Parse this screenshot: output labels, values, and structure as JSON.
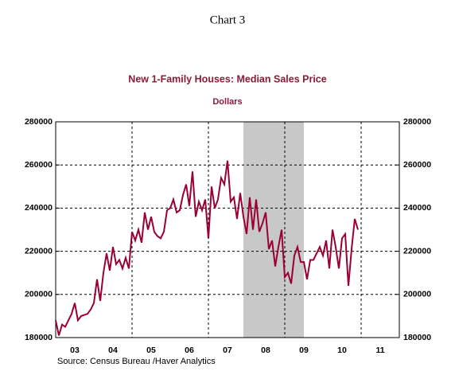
{
  "chart_data": {
    "type": "line",
    "heading": "Chart 3",
    "title": "New 1-Family Houses: Median Sales Price",
    "subtitle": "Dollars",
    "source": "Source:   Census Bureau /Haver Analytics",
    "x": [
      2003,
      2003.083,
      2003.167,
      2003.25,
      2003.333,
      2003.417,
      2003.5,
      2003.583,
      2003.667,
      2003.75,
      2003.833,
      2003.917,
      2004,
      2004.083,
      2004.167,
      2004.25,
      2004.333,
      2004.417,
      2004.5,
      2004.583,
      2004.667,
      2004.75,
      2004.833,
      2004.917,
      2005,
      2005.083,
      2005.167,
      2005.25,
      2005.333,
      2005.417,
      2005.5,
      2005.583,
      2005.667,
      2005.75,
      2005.833,
      2005.917,
      2006,
      2006.083,
      2006.167,
      2006.25,
      2006.333,
      2006.417,
      2006.5,
      2006.583,
      2006.667,
      2006.75,
      2006.833,
      2006.917,
      2007,
      2007.083,
      2007.167,
      2007.25,
      2007.333,
      2007.417,
      2007.5,
      2007.583,
      2007.667,
      2007.75,
      2007.833,
      2007.917,
      2008,
      2008.083,
      2008.167,
      2008.25,
      2008.333,
      2008.417,
      2008.5,
      2008.583,
      2008.667,
      2008.75,
      2008.833,
      2008.917,
      2009,
      2009.083,
      2009.167,
      2009.25,
      2009.333,
      2009.417,
      2009.5,
      2009.583,
      2009.667,
      2009.75,
      2009.833,
      2009.917,
      2010,
      2010.083,
      2010.167,
      2010.25,
      2010.333,
      2010.417,
      2010.5,
      2010.583,
      2010.667,
      2010.75,
      2010.833,
      2010.917
    ],
    "series": [
      {
        "color": "#990033",
        "values": [
          188000,
          181000,
          186000,
          185000,
          188000,
          191000,
          196000,
          188000,
          190000,
          190500,
          191000,
          193000,
          196000,
          207000,
          197000,
          210000,
          219000,
          211000,
          222000,
          214000,
          216000,
          212000,
          217000,
          212000,
          229000,
          225000,
          230000,
          224000,
          238000,
          230000,
          236000,
          229000,
          227000,
          226000,
          229000,
          239000,
          240000,
          244000,
          238000,
          239000,
          246000,
          251000,
          241000,
          257000,
          236000,
          243000,
          239000,
          244000,
          226000,
          250000,
          240000,
          244000,
          254000,
          251000,
          262000,
          243000,
          245000,
          235000,
          247000,
          236000,
          228000,
          245000,
          230000,
          244000,
          229000,
          233000,
          238000,
          221000,
          225000,
          213000,
          222000,
          230000,
          208000,
          210000,
          205000,
          218000,
          222000,
          215000,
          215000,
          207000,
          216000,
          216000,
          219000,
          222000,
          218000,
          225000,
          212000,
          230000,
          222000,
          212000,
          226000,
          228000,
          204000,
          221000,
          235000,
          230000
        ]
      }
    ],
    "xlim": [
      2003,
      2012
    ],
    "xticks": [
      {
        "value": 2003.5,
        "label": "03"
      },
      {
        "value": 2004.5,
        "label": "04"
      },
      {
        "value": 2005.5,
        "label": "05"
      },
      {
        "value": 2006.5,
        "label": "06"
      },
      {
        "value": 2007.5,
        "label": "07"
      },
      {
        "value": 2008.5,
        "label": "08"
      },
      {
        "value": 2009.5,
        "label": "09"
      },
      {
        "value": 2010.5,
        "label": "10"
      },
      {
        "value": 2011.5,
        "label": "11"
      }
    ],
    "xgrid": [
      2005,
      2007,
      2009,
      2011
    ],
    "ylim": [
      180000,
      280000
    ],
    "yticks": [
      180000,
      200000,
      220000,
      240000,
      260000,
      280000
    ],
    "shaded_regions": [
      [
        2007.917,
        2009.5
      ]
    ],
    "shade_color": "#c8c8c8",
    "grid": true
  }
}
